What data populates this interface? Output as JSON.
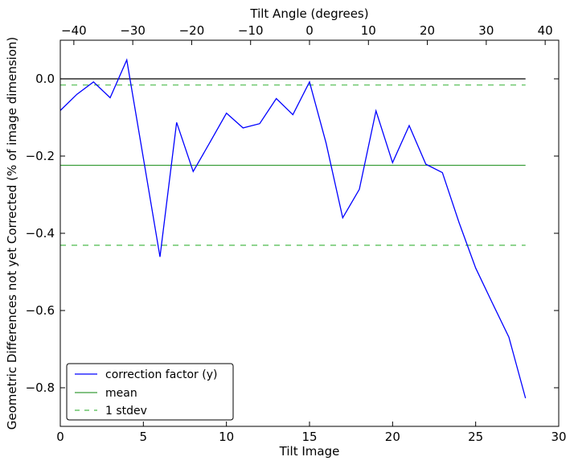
{
  "chart_data": {
    "type": "line",
    "xlabel": "Tilt Image",
    "ylabel": "Geometric Differences not yet Corrected (% of image dimension)",
    "top_xlabel": "Tilt Angle (degrees)",
    "xlim": [
      0,
      30
    ],
    "ylim": [
      -0.9,
      0.1
    ],
    "top_xlim": [
      -42.3,
      42.3
    ],
    "x_ticks": [
      0,
      5,
      10,
      15,
      20,
      25,
      30
    ],
    "x_tick_labels": [
      "0",
      "5",
      "10",
      "15",
      "20",
      "25",
      "30"
    ],
    "y_ticks": [
      0.0,
      -0.2,
      -0.4,
      -0.6,
      -0.8
    ],
    "y_tick_labels": [
      "0.0",
      "−0.2",
      "−0.4",
      "−0.6",
      "−0.8"
    ],
    "top_ticks": [
      -40,
      -30,
      -20,
      -10,
      0,
      10,
      20,
      30,
      40
    ],
    "top_tick_labels": [
      "−40",
      "−30",
      "−20",
      "−10",
      "0",
      "10",
      "20",
      "30",
      "40"
    ],
    "grid": false,
    "legend_placement": "lower-left",
    "series": [
      {
        "name": "correction factor (y)",
        "color": "#0000ff",
        "style": "solid",
        "x": [
          0,
          1,
          2,
          3,
          4,
          5,
          6,
          7,
          8,
          9,
          10,
          11,
          12,
          13,
          14,
          15,
          16,
          17,
          18,
          19,
          20,
          21,
          22,
          23,
          24,
          25,
          26,
          27,
          28
        ],
        "values": [
          -0.082,
          -0.04,
          -0.008,
          -0.049,
          0.049,
          -0.205,
          -0.461,
          -0.113,
          -0.24,
          -0.165,
          -0.089,
          -0.127,
          -0.116,
          -0.051,
          -0.093,
          -0.008,
          -0.167,
          -0.36,
          -0.286,
          -0.083,
          -0.217,
          -0.121,
          -0.221,
          -0.243,
          -0.372,
          -0.49,
          -0.58,
          -0.669,
          -0.827
        ]
      },
      {
        "name": "mean",
        "color": "#3a9e3a",
        "style": "solid",
        "x": [
          0,
          28
        ],
        "values": [
          -0.224,
          -0.224
        ]
      },
      {
        "name": "1 stdev",
        "color": "#4cbb4c",
        "style": "dashed",
        "x": [
          0,
          28
        ],
        "values": [
          -0.016,
          -0.016
        ]
      },
      {
        "name": "1 stdev (lower)",
        "color": "#4cbb4c",
        "style": "dashed",
        "x": [
          0,
          28
        ],
        "values": [
          -0.431,
          -0.431
        ]
      },
      {
        "name": "zero",
        "color": "#000000",
        "style": "solid",
        "x": [
          0,
          28
        ],
        "values": [
          0,
          0
        ]
      }
    ],
    "legend": [
      "correction factor (y)",
      "mean",
      "1 stdev"
    ]
  }
}
